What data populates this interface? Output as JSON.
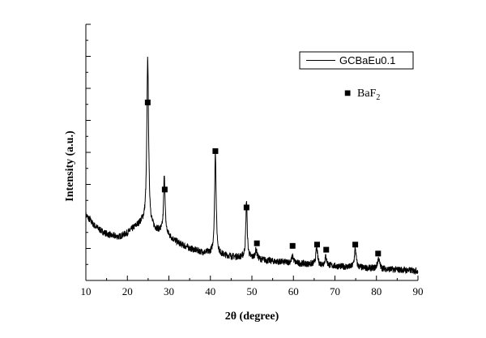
{
  "chart_data": {
    "type": "line",
    "title": "",
    "xlabel": "2θ (degree)",
    "ylabel": "Intensity (a.u.)",
    "xlim": [
      10,
      90
    ],
    "ylim": [
      0,
      100
    ],
    "x_ticks": [
      10,
      20,
      30,
      40,
      50,
      60,
      70,
      80,
      90
    ],
    "y_tick_labels_shown": false,
    "grid": false,
    "legend_position": "top-right",
    "series": [
      {
        "name": "GCBaEu0.1",
        "color": "#000000",
        "baseline": [
          [
            10,
            25.5
          ],
          [
            12,
            21.5
          ],
          [
            14,
            19.0
          ],
          [
            16,
            17.5
          ],
          [
            18,
            17.0
          ],
          [
            20,
            18.5
          ],
          [
            22,
            21.0
          ],
          [
            23.5,
            22.5
          ],
          [
            25,
            21.0
          ],
          [
            27,
            19.5
          ],
          [
            29,
            18.5
          ],
          [
            31,
            16.0
          ],
          [
            33,
            14.0
          ],
          [
            35,
            12.5
          ],
          [
            38,
            11.0
          ],
          [
            42,
            10.0
          ],
          [
            46,
            9.2
          ],
          [
            50,
            8.5
          ],
          [
            55,
            7.5
          ],
          [
            60,
            6.8
          ],
          [
            65,
            6.2
          ],
          [
            70,
            5.6
          ],
          [
            75,
            5.0
          ],
          [
            80,
            4.6
          ],
          [
            85,
            4.2
          ],
          [
            90,
            3.8
          ]
        ],
        "peaks": [
          [
            24.9,
            66.0,
            0.25
          ],
          [
            28.9,
            23.0,
            0.2
          ],
          [
            41.2,
            40.0,
            0.22
          ],
          [
            48.7,
            22.5,
            0.2
          ],
          [
            51.0,
            3.5,
            0.3
          ],
          [
            59.8,
            2.5,
            0.3
          ],
          [
            65.6,
            6.5,
            0.25
          ],
          [
            67.8,
            3.5,
            0.25
          ],
          [
            74.9,
            7.5,
            0.25
          ],
          [
            80.5,
            4.0,
            0.3
          ]
        ]
      }
    ],
    "annotations": {
      "symbol": "■",
      "phase_label": "BaF",
      "phase_subscript": "2",
      "marker_positions": [
        [
          24.9,
          69.5
        ],
        [
          29.0,
          35.5
        ],
        [
          41.2,
          50.5
        ],
        [
          48.7,
          28.5
        ],
        [
          51.2,
          14.5
        ],
        [
          59.8,
          13.5
        ],
        [
          65.7,
          14.0
        ],
        [
          67.9,
          12.0
        ],
        [
          74.9,
          14.0
        ],
        [
          80.4,
          10.5
        ]
      ]
    }
  }
}
